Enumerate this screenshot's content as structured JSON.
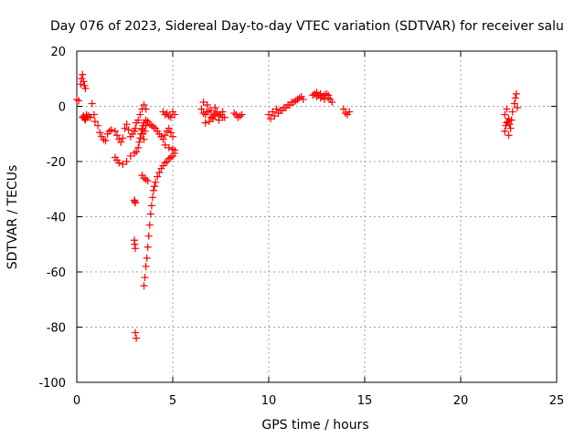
{
  "chart_data": {
    "type": "scatter",
    "title": "Day 076 of 2023, Sidereal Day-to-day VTEC variation (SDTVAR) for receiver salu",
    "xlabel": "GPS time / hours",
    "ylabel": "SDTVAR / TECUs",
    "xlim": [
      0,
      25
    ],
    "ylim": [
      -100,
      20
    ],
    "xticks": [
      0,
      5,
      10,
      15,
      20,
      25
    ],
    "yticks": [
      -100,
      -80,
      -60,
      -40,
      -20,
      0,
      20
    ],
    "grid": true,
    "marker": "+",
    "color": "#ff0000",
    "series": [
      {
        "name": "SDTVAR",
        "x": [
          0.0,
          0.1,
          0.2,
          0.25,
          0.3,
          0.35,
          0.4,
          0.45,
          0.3,
          0.35,
          0.4,
          0.45,
          0.5,
          0.55,
          0.6,
          0.7,
          0.8,
          0.9,
          0.95,
          1.1,
          1.2,
          1.3,
          1.4,
          1.5,
          1.6,
          1.7,
          1.8,
          2.0,
          2.1,
          2.2,
          2.3,
          2.4,
          2.5,
          2.6,
          2.7,
          2.8,
          2.9,
          3.0,
          3.05,
          3.1,
          3.2,
          3.3,
          3.4,
          3.5,
          3.6,
          2.0,
          2.1,
          2.2,
          2.4,
          2.6,
          2.8,
          3.0,
          3.1,
          3.2,
          3.25,
          3.3,
          3.35,
          3.4,
          3.45,
          3.5,
          3.6,
          3.7,
          3.8,
          3.9,
          4.0,
          4.1,
          4.2,
          4.3,
          4.4,
          4.5,
          4.6,
          4.7,
          4.8,
          4.9,
          5.0,
          3.0,
          3.02,
          3.05,
          3.0,
          3.02,
          3.05,
          3.05,
          3.1,
          3.4,
          3.5,
          3.6,
          3.7,
          3.5,
          3.55,
          3.6,
          3.65,
          3.7,
          3.75,
          3.8,
          3.85,
          3.9,
          3.95,
          4.0,
          4.05,
          4.1,
          4.2,
          4.3,
          4.4,
          4.5,
          4.6,
          4.7,
          4.8,
          4.9,
          5.0,
          5.1,
          3.4,
          3.45,
          3.5,
          3.55,
          3.6,
          4.5,
          4.6,
          4.7,
          4.8,
          4.9,
          5.0,
          5.1,
          4.6,
          4.8,
          5.0,
          5.1,
          6.5,
          6.6,
          6.7,
          6.8,
          6.9,
          7.0,
          7.1,
          7.2,
          7.3,
          7.4,
          7.5,
          7.6,
          7.7,
          6.6,
          6.8,
          7.0,
          7.2,
          7.4,
          7.6,
          6.7,
          6.9,
          7.1,
          7.3,
          8.2,
          8.3,
          8.4,
          8.5,
          8.6,
          10.0,
          10.2,
          10.4,
          10.6,
          10.8,
          11.0,
          11.2,
          11.4,
          11.6,
          11.8,
          10.1,
          10.3,
          10.5,
          10.7,
          10.9,
          11.1,
          11.3,
          11.5,
          11.7,
          12.3,
          12.4,
          12.5,
          12.6,
          12.7,
          12.8,
          12.9,
          13.0,
          13.1,
          13.2,
          13.3,
          12.5,
          12.7,
          12.9,
          13.1,
          13.9,
          14.0,
          14.1,
          14.2,
          22.3,
          22.35,
          22.4,
          22.45,
          22.5,
          22.55,
          22.6,
          22.65,
          22.7,
          22.8,
          22.85,
          22.9,
          22.95,
          22.3,
          22.4,
          22.5
        ],
        "y": [
          2.5,
          2.0,
          8.0,
          10.0,
          11.5,
          9.0,
          7.5,
          6.5,
          -4.0,
          -3.5,
          -4.5,
          -5.0,
          -3.0,
          -4.0,
          -3.5,
          -4.0,
          1.0,
          -3.0,
          -5.5,
          -7.0,
          -9.5,
          -11.0,
          -12.0,
          -12.5,
          -10.0,
          -9.0,
          -8.5,
          -9.0,
          -10.5,
          -12.0,
          -13.0,
          -11.5,
          -8.0,
          -6.5,
          -8.5,
          -11.0,
          -10.0,
          -9.0,
          -8.0,
          -6.0,
          -5.0,
          -3.0,
          -1.0,
          0.5,
          -1.0,
          -18.5,
          -19.5,
          -20.5,
          -21.0,
          -20.0,
          -18.0,
          -17.0,
          -16.5,
          -15.0,
          -13.0,
          -11.5,
          -10.0,
          -8.5,
          -7.0,
          -6.0,
          -5.0,
          -5.5,
          -6.5,
          -7.0,
          -7.5,
          -8.0,
          -9.0,
          -10.0,
          -11.0,
          -12.0,
          -10.5,
          -9.0,
          -8.0,
          -9.5,
          -11.0,
          -34.0,
          -34.5,
          -35.0,
          -48.5,
          -50.0,
          -51.5,
          -82.0,
          -84.0,
          -25.0,
          -26.0,
          -26.5,
          -27.0,
          -65.0,
          -62.0,
          -58.0,
          -55.0,
          -51.0,
          -47.0,
          -43.0,
          -39.0,
          -36.0,
          -33.0,
          -30.5,
          -29.0,
          -27.5,
          -25.5,
          -24.0,
          -22.5,
          -21.5,
          -20.5,
          -20.0,
          -19.0,
          -18.5,
          -18.0,
          -17.0,
          -8.0,
          -10.0,
          -12.0,
          -9.0,
          -7.0,
          -2.0,
          -3.0,
          -2.5,
          -3.5,
          -4.0,
          -2.0,
          -3.0,
          -14.0,
          -15.0,
          -15.5,
          -16.0,
          -1.0,
          -2.5,
          -3.0,
          -2.0,
          -1.5,
          -4.0,
          -4.5,
          -3.0,
          -2.5,
          -3.5,
          -3.0,
          -2.0,
          -4.0,
          1.5,
          0.5,
          -1.5,
          -0.5,
          -5.0,
          -4.0,
          -6.0,
          -5.5,
          -3.5,
          -2.0,
          -2.5,
          -3.0,
          -4.0,
          -3.5,
          -3.0,
          -3.0,
          -2.0,
          -1.0,
          -1.5,
          -0.5,
          0.5,
          1.5,
          2.0,
          3.0,
          2.5,
          -4.5,
          -3.5,
          -2.5,
          -1.5,
          -0.5,
          0.5,
          1.5,
          2.5,
          3.5,
          4.0,
          4.5,
          5.0,
          4.0,
          4.5,
          3.5,
          4.0,
          4.5,
          3.0,
          2.5,
          1.5,
          3.5,
          3.0,
          2.5,
          4.0,
          -1.0,
          -2.5,
          -3.0,
          -2.0,
          -9.0,
          -7.0,
          -6.0,
          -5.5,
          -4.5,
          -6.5,
          -8.0,
          -5.0,
          -2.0,
          1.0,
          3.0,
          4.5,
          -0.5,
          -3.0,
          -1.0,
          -10.5
        ]
      }
    ]
  }
}
